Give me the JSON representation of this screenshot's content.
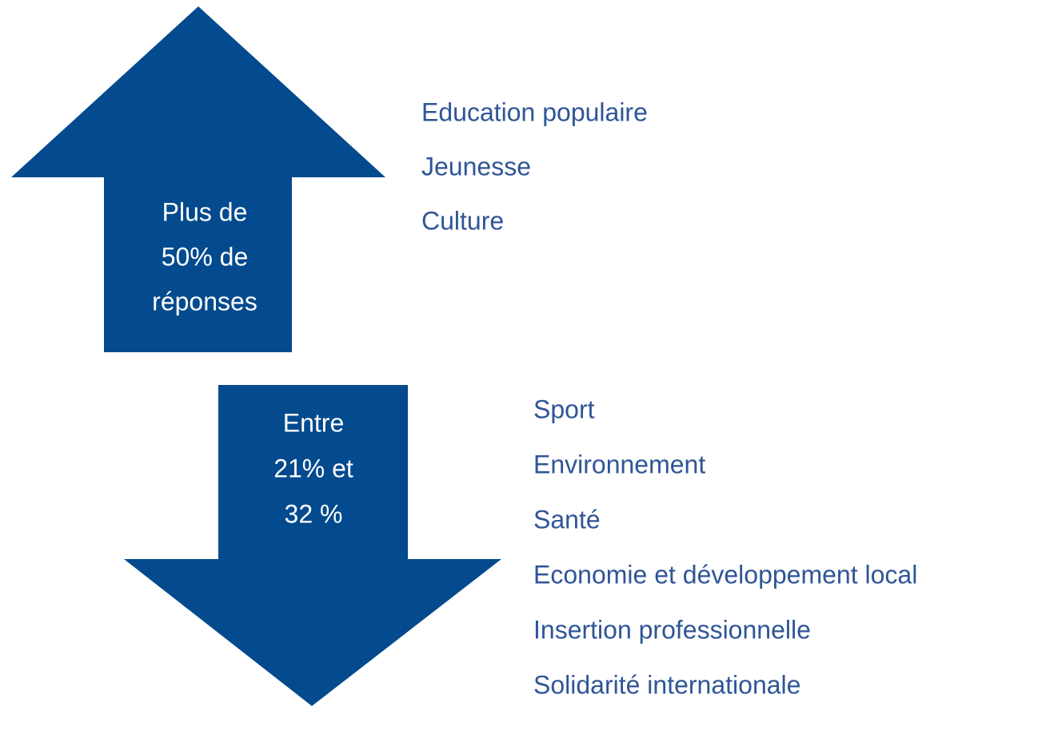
{
  "up_arrow": {
    "label_lines": [
      "Plus de",
      "50% de",
      "réponses"
    ]
  },
  "up_list": [
    "Education populaire",
    "Jeunesse",
    "Culture"
  ],
  "down_arrow": {
    "label_lines": [
      "Entre",
      "21% et",
      "32 %"
    ]
  },
  "down_list": [
    "Sport",
    "Environnement",
    "Santé",
    "Economie et développement local",
    "Insertion professionnelle",
    "Solidarité internationale"
  ]
}
